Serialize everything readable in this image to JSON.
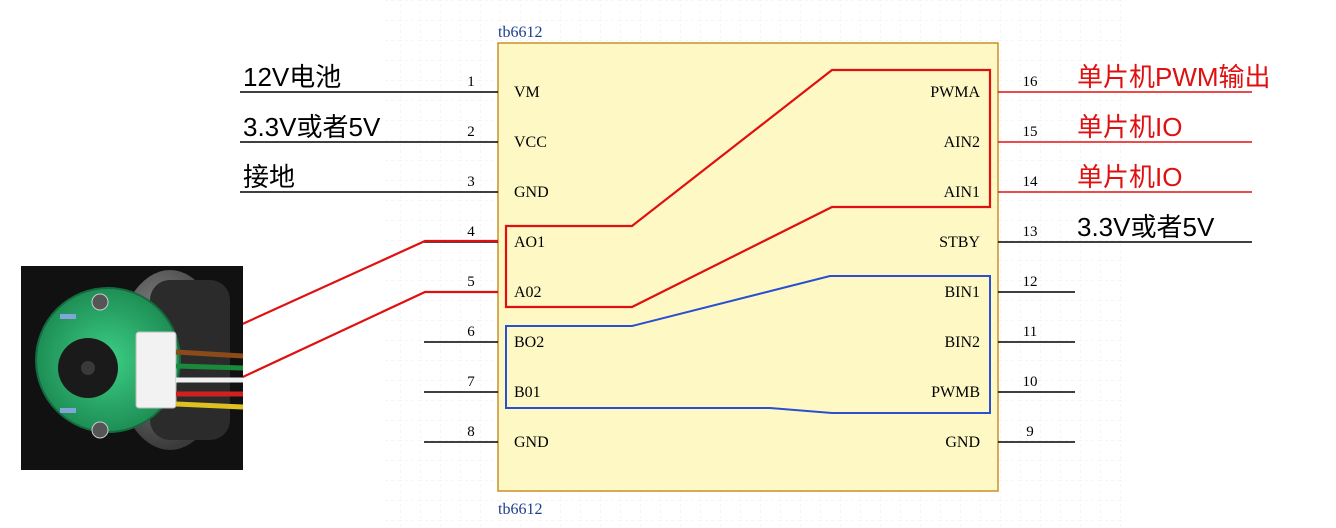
{
  "chip": {
    "name_top": "tb6612",
    "name_bottom": "tb6612",
    "fill": "#fdf8c4",
    "border": "#c8902a"
  },
  "pins_left": [
    {
      "num": "1",
      "name": "VM",
      "label": "12V电池",
      "label_color": "#000000"
    },
    {
      "num": "2",
      "name": "VCC",
      "label": "3.3V或者5V",
      "label_color": "#000000"
    },
    {
      "num": "3",
      "name": "GND",
      "label": "接地",
      "label_color": "#000000"
    },
    {
      "num": "4",
      "name": "AO1",
      "label": "",
      "label_color": "#000000"
    },
    {
      "num": "5",
      "name": "A02",
      "label": "",
      "label_color": "#000000"
    },
    {
      "num": "6",
      "name": "BO2",
      "label": "",
      "label_color": "#000000"
    },
    {
      "num": "7",
      "name": "B01",
      "label": "",
      "label_color": "#000000"
    },
    {
      "num": "8",
      "name": "GND",
      "label": "",
      "label_color": "#000000"
    }
  ],
  "pins_right": [
    {
      "num": "16",
      "name": "PWMA",
      "label": "单片机PWM输出",
      "label_color": "#e01010"
    },
    {
      "num": "15",
      "name": "AIN2",
      "label": "单片机IO",
      "label_color": "#e01010"
    },
    {
      "num": "14",
      "name": "AIN1",
      "label": "单片机IO",
      "label_color": "#e01010"
    },
    {
      "num": "13",
      "name": "STBY",
      "label": "3.3V或者5V",
      "label_color": "#000000"
    },
    {
      "num": "12",
      "name": "BIN1",
      "label": "",
      "label_color": "#000000"
    },
    {
      "num": "11",
      "name": "BIN2",
      "label": "",
      "label_color": "#000000"
    },
    {
      "num": "10",
      "name": "PWMB",
      "label": "",
      "label_color": "#000000"
    },
    {
      "num": "9",
      "name": "GND",
      "label": "",
      "label_color": "#000000"
    }
  ],
  "colors": {
    "grid": "#eeeeee",
    "channel_a": "#e01010",
    "channel_b": "#2a4fd0",
    "label_red": "#e01010"
  },
  "motor_photo": {
    "board_color": "#2aa86a",
    "background": "#111111"
  }
}
